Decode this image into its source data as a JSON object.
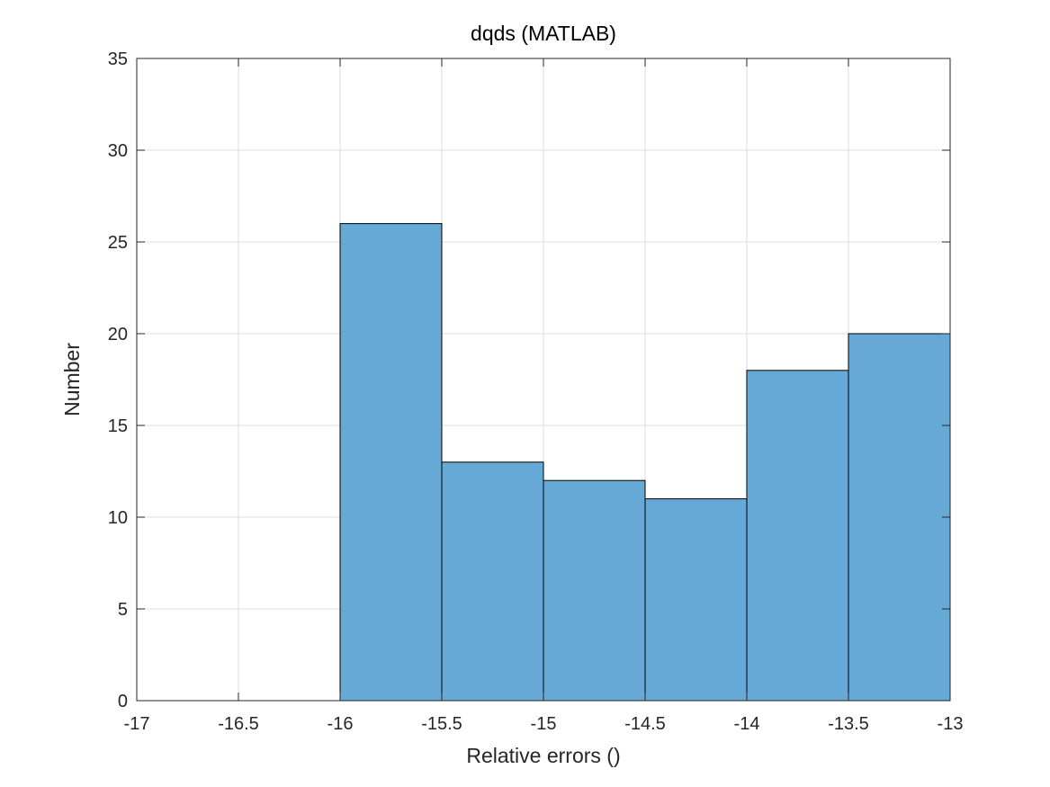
{
  "chart_data": {
    "type": "bar",
    "title": "dqds (MATLAB)",
    "xlabel": "Relative errors ()",
    "ylabel": "Number",
    "xlim": [
      -17,
      -13
    ],
    "ylim": [
      0,
      35
    ],
    "xticks": [
      -17,
      -16.5,
      -16,
      -15.5,
      -15,
      -14.5,
      -14,
      -13.5,
      -13
    ],
    "xtick_labels": [
      "-17",
      "-16.5",
      "-16",
      "-15.5",
      "-15",
      "-14.5",
      "-14",
      "-13.5",
      "-13"
    ],
    "yticks": [
      0,
      5,
      10,
      15,
      20,
      25,
      30,
      35
    ],
    "ytick_labels": [
      "0",
      "5",
      "10",
      "15",
      "20",
      "25",
      "30",
      "35"
    ],
    "bin_edges": [
      -16,
      -15.5,
      -15,
      -14.5,
      -14,
      -13.5,
      -13
    ],
    "values": [
      26,
      13,
      12,
      11,
      18,
      20
    ],
    "grid": true,
    "bar_color": "#66a8d6",
    "bar_edge_color": "#000000"
  }
}
